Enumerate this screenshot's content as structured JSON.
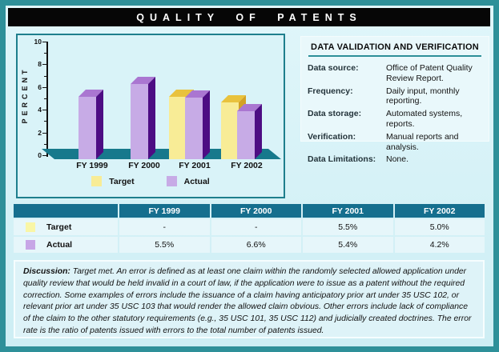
{
  "title": "QUALITY OF PATENTS",
  "chart_data": {
    "type": "bar",
    "categories": [
      "FY 1999",
      "FY 2000",
      "FY 2001",
      "FY 2002"
    ],
    "series": [
      {
        "name": "Target",
        "values": [
          null,
          null,
          5.5,
          5.0
        ],
        "front": "#f8ec96",
        "top": "#e9c23d",
        "side": "#d3a125"
      },
      {
        "name": "Actual",
        "values": [
          5.5,
          6.6,
          5.4,
          4.2
        ],
        "front": "#c7abe6",
        "top": "#aa76d1",
        "side": "#4d0d83"
      }
    ],
    "ylabel": "PERCENT",
    "ylim": [
      0,
      10
    ],
    "yticks": [
      0,
      2,
      4,
      6,
      8,
      10
    ],
    "grid": false,
    "legend_position": "bottom"
  },
  "validation": {
    "title": "DATA VALIDATION AND VERIFICATION",
    "rows": [
      {
        "label": "Data source:",
        "value": "Office of Patent Quality Review Report."
      },
      {
        "label": "Frequency:",
        "value": "Daily input, monthly reporting."
      },
      {
        "label": "Data storage:",
        "value": "Automated systems, reports."
      },
      {
        "label": "Verification:",
        "value": "Manual reports and analysis."
      },
      {
        "label": "Data Limitations:",
        "value": "None."
      }
    ]
  },
  "table": {
    "columns": [
      "",
      "FY 1999",
      "FY 2000",
      "FY 2001",
      "FY 2002"
    ],
    "rows": [
      {
        "label": "Target",
        "swatch": "#f9f6a6",
        "values": [
          "-",
          "-",
          "5.5%",
          "5.0%"
        ]
      },
      {
        "label": "Actual",
        "swatch": "#c7a6e6",
        "values": [
          "5.5%",
          "6.6%",
          "5.4%",
          "4.2%"
        ]
      }
    ]
  },
  "discussion": {
    "label": "Discussion:",
    "text": "Target met.   An error is defined as at least one claim within the randomly selected allowed application under quality review that would be held invalid in a court of law, if the application were to issue as a patent without the required correction.  Some examples of errors include the issuance of a claim having anticipatory prior art under 35 USC 102, or relevant prior art under 35 USC 103 that would render the allowed claim obvious.  Other errors include lack of compliance of the claim to the other statutory requirements (e.g., 35 USC 101, 35 USC 112) and judicially created doctrines.  The error rate is the ratio of patents issued with errors to the total number of patents issued."
  },
  "colors": {
    "page_border": "#2e9099",
    "page_bg": "#d8f1f6",
    "title_bg": "#060606",
    "title_fg": "#ffffff",
    "chart_bg": "#d9f3f8",
    "chart_border": "#1e7f8d",
    "floor": "#17798c",
    "table_header_bg": "#156f8e",
    "table_row_bg": "#e6f6fa"
  }
}
